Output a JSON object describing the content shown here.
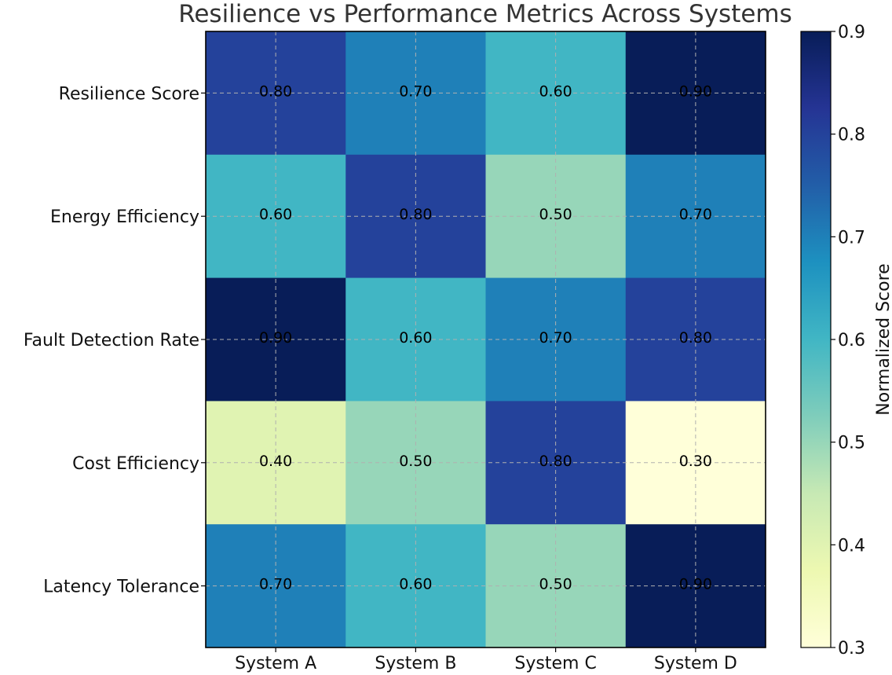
{
  "chart_data": {
    "type": "heatmap",
    "title": "Resilience vs Performance Metrics Across Systems",
    "xlabel": "",
    "ylabel": "",
    "columns": [
      "System A",
      "System B",
      "System C",
      "System D"
    ],
    "rows": [
      "Resilience Score",
      "Energy Efficiency",
      "Fault Detection Rate",
      "Cost Efficiency",
      "Latency Tolerance"
    ],
    "values": [
      [
        0.8,
        0.7,
        0.6,
        0.9
      ],
      [
        0.6,
        0.8,
        0.5,
        0.7
      ],
      [
        0.9,
        0.6,
        0.7,
        0.8
      ],
      [
        0.4,
        0.5,
        0.8,
        0.3
      ],
      [
        0.7,
        0.6,
        0.5,
        0.9
      ]
    ],
    "value_labels": [
      [
        "0.80",
        "0.70",
        "0.60",
        "0.90"
      ],
      [
        "0.60",
        "0.80",
        "0.50",
        "0.70"
      ],
      [
        "0.90",
        "0.60",
        "0.70",
        "0.80"
      ],
      [
        "0.40",
        "0.50",
        "0.80",
        "0.30"
      ],
      [
        "0.70",
        "0.60",
        "0.50",
        "0.90"
      ]
    ],
    "colormap": "YlGnBu",
    "color_scale": {
      "min": 0.3,
      "max": 0.9,
      "label": "Normalized Score",
      "ticks": [
        "0.3",
        "0.4",
        "0.5",
        "0.6",
        "0.7",
        "0.8",
        "0.9"
      ],
      "stops": [
        "#ffffd9",
        "#edf8b1",
        "#c7e9b4",
        "#7fcdbb",
        "#41b6c4",
        "#1d91c0",
        "#225ea8",
        "#253494",
        "#081d58"
      ]
    },
    "grid": true
  }
}
